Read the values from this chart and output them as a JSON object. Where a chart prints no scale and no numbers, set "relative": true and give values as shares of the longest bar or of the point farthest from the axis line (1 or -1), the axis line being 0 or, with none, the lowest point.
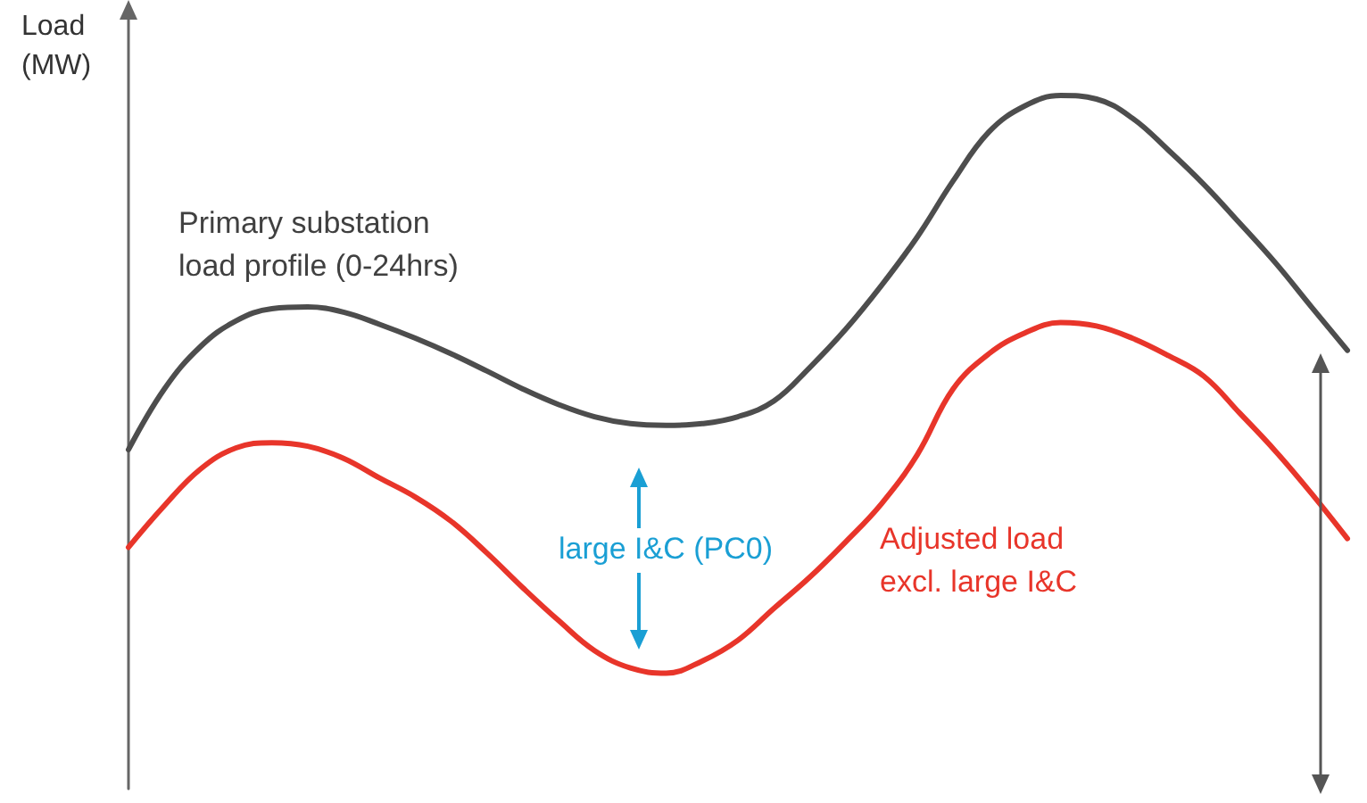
{
  "chart_data": {
    "type": "line",
    "relative": true,
    "ylabel": "Load\n(MW)",
    "grid": false,
    "legend": false,
    "marker": "none",
    "line_style": "solid",
    "categories": [
      null,
      null,
      null,
      null,
      null,
      null,
      null,
      null,
      null,
      null,
      null,
      null,
      null,
      null,
      null,
      null,
      null,
      null,
      null,
      null,
      null,
      null,
      null,
      null,
      null,
      null,
      null,
      null,
      null,
      null,
      null,
      null,
      null,
      null,
      null
    ],
    "series": [
      {
        "name": "Primary substation\nload profile (0-24hrs)",
        "color": "#4d4d4d",
        "values": [
          0.387,
          0.492,
          0.565,
          0.61,
          0.631,
          0.634,
          0.625,
          0.604,
          0.58,
          0.553,
          0.523,
          0.492,
          0.465,
          0.444,
          0.432,
          0.429,
          0.432,
          0.444,
          0.471,
          0.529,
          0.595,
          0.671,
          0.755,
          0.852,
          0.937,
          0.982,
          1,
          0.994,
          0.961,
          0.906,
          0.846,
          0.779,
          0.71,
          0.634,
          0.559
        ]
      },
      {
        "name": "Adjusted load\nexcl. large I&C",
        "color": "#e8352a",
        "values": [
          0.218,
          0.29,
          0.353,
          0.39,
          0.399,
          0.393,
          0.372,
          0.338,
          0.305,
          0.263,
          0.208,
          0.148,
          0.091,
          0.039,
          0.009,
          0,
          0.021,
          0.057,
          0.112,
          0.166,
          0.227,
          0.293,
          0.378,
          0.492,
          0.553,
          0.589,
          0.607,
          0.601,
          0.58,
          0.55,
          0.514,
          0.45,
          0.384,
          0.311,
          0.233
        ]
      }
    ],
    "annotations": [
      "large I&C (PC0)"
    ]
  }
}
